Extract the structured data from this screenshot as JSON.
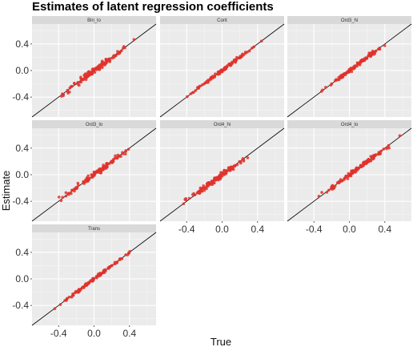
{
  "chart_data": {
    "type": "scatter",
    "title": "Estimates of latent regression coefficients",
    "xlabel": "True",
    "ylabel": "Estimate",
    "xlim": [
      -0.7,
      0.7
    ],
    "ylim": [
      -0.7,
      0.7
    ],
    "x_ticks": [
      -0.4,
      0.0,
      0.4
    ],
    "y_ticks": [
      -0.4,
      0.0,
      0.4
    ],
    "x_tick_labels": [
      "-0.4",
      "0.0",
      "0.4"
    ],
    "y_tick_labels": [
      "-0.4",
      "0.0",
      "0.4"
    ],
    "grid": true,
    "reference_line": "y = x",
    "point_color": "#e0312b",
    "panel_background": "#ebebeb",
    "strip_background": "#d9d9d9",
    "facets": [
      {
        "strip": "Bin_lo",
        "x_range": [
          -0.52,
          0.52
        ],
        "slope": 1.0,
        "noise": 0.035
      },
      {
        "strip": "Cont",
        "x_range": [
          -0.5,
          0.52
        ],
        "slope": 0.98,
        "noise": 0.018
      },
      {
        "strip": "Ord3_hi",
        "x_range": [
          -0.4,
          0.5
        ],
        "slope": 0.98,
        "noise": 0.022
      },
      {
        "strip": "Ord3_lo",
        "x_range": [
          -0.52,
          0.52
        ],
        "slope": 0.98,
        "noise": 0.03
      },
      {
        "strip": "Ord4_hi",
        "x_range": [
          -0.55,
          0.35
        ],
        "slope": 0.95,
        "noise": 0.03
      },
      {
        "strip": "Ord4_lo",
        "x_range": [
          -0.42,
          0.62
        ],
        "slope": 0.98,
        "noise": 0.025
      },
      {
        "strip": "Trans",
        "x_range": [
          -0.6,
          0.55
        ],
        "slope": 1.0,
        "noise": 0.015
      }
    ]
  }
}
